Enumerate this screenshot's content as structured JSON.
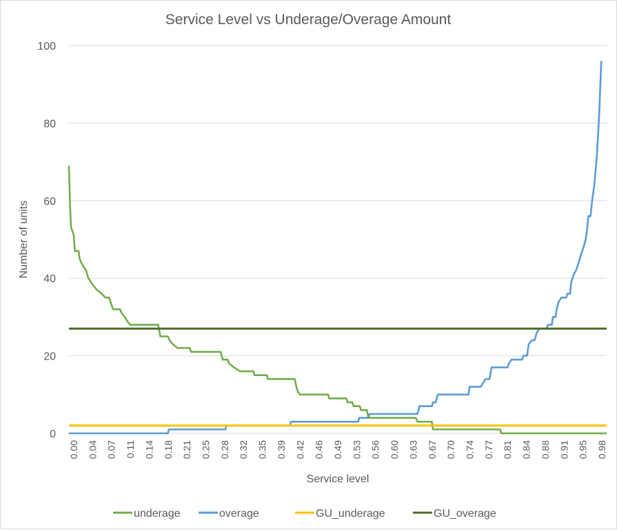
{
  "chart_data": {
    "type": "line",
    "title": "Service Level vs Underage/Overage Amount",
    "xlabel": "Service level",
    "ylabel": "Number of units",
    "xlim": [
      0,
      1.0
    ],
    "ylim": [
      0,
      100
    ],
    "yticks": [
      0,
      20,
      40,
      60,
      80,
      100
    ],
    "xtick_labels": [
      "0.00",
      "0.04",
      "0.07",
      "0.11",
      "0.14",
      "0.18",
      "0.21",
      "0.25",
      "0.28",
      "0.32",
      "0.35",
      "0.39",
      "0.42",
      "0.46",
      "0.49",
      "0.53",
      "0.56",
      "0.60",
      "0.63",
      "0.67",
      "0.70",
      "0.74",
      "0.77",
      "0.81",
      "0.84",
      "0.88",
      "0.91",
      "0.95",
      "0.98"
    ],
    "grid": true,
    "legend": "bottom",
    "series": [
      {
        "name": "underage",
        "color": "#70ad47",
        "step": true,
        "points": [
          [
            0.0,
            69
          ],
          [
            0.002,
            59
          ],
          [
            0.004,
            53
          ],
          [
            0.007,
            52
          ],
          [
            0.009,
            51
          ],
          [
            0.011,
            47
          ],
          [
            0.018,
            47
          ],
          [
            0.02,
            45
          ],
          [
            0.023,
            44
          ],
          [
            0.027,
            43
          ],
          [
            0.032,
            42
          ],
          [
            0.036,
            40
          ],
          [
            0.041,
            39
          ],
          [
            0.046,
            38
          ],
          [
            0.052,
            37
          ],
          [
            0.061,
            36
          ],
          [
            0.068,
            35
          ],
          [
            0.075,
            35
          ],
          [
            0.077,
            34
          ],
          [
            0.082,
            32
          ],
          [
            0.095,
            32
          ],
          [
            0.098,
            31
          ],
          [
            0.104,
            30
          ],
          [
            0.108,
            29
          ],
          [
            0.114,
            28
          ],
          [
            0.166,
            28
          ],
          [
            0.17,
            25
          ],
          [
            0.184,
            25
          ],
          [
            0.187,
            24
          ],
          [
            0.193,
            23
          ],
          [
            0.202,
            22
          ],
          [
            0.225,
            22
          ],
          [
            0.227,
            21
          ],
          [
            0.282,
            21
          ],
          [
            0.286,
            19
          ],
          [
            0.295,
            19
          ],
          [
            0.298,
            18
          ],
          [
            0.307,
            17
          ],
          [
            0.318,
            16
          ],
          [
            0.343,
            16
          ],
          [
            0.345,
            15
          ],
          [
            0.368,
            15
          ],
          [
            0.37,
            14
          ],
          [
            0.42,
            14
          ],
          [
            0.423,
            12
          ],
          [
            0.425,
            11
          ],
          [
            0.429,
            10
          ],
          [
            0.482,
            10
          ],
          [
            0.484,
            9
          ],
          [
            0.516,
            9
          ],
          [
            0.518,
            8
          ],
          [
            0.527,
            8
          ],
          [
            0.529,
            7
          ],
          [
            0.541,
            7
          ],
          [
            0.543,
            6
          ],
          [
            0.554,
            6
          ],
          [
            0.557,
            4
          ],
          [
            0.645,
            4
          ],
          [
            0.648,
            3
          ],
          [
            0.675,
            3
          ],
          [
            0.677,
            1
          ],
          [
            0.802,
            1
          ],
          [
            0.804,
            0
          ],
          [
            1.0,
            0
          ]
        ]
      },
      {
        "name": "overage",
        "color": "#5b9bd5",
        "step": true,
        "points": [
          [
            0.0,
            0
          ],
          [
            0.184,
            0
          ],
          [
            0.186,
            1
          ],
          [
            0.291,
            1
          ],
          [
            0.293,
            2
          ],
          [
            0.411,
            2
          ],
          [
            0.413,
            3
          ],
          [
            0.538,
            3
          ],
          [
            0.54,
            4
          ],
          [
            0.557,
            4
          ],
          [
            0.559,
            5
          ],
          [
            0.648,
            5
          ],
          [
            0.652,
            7
          ],
          [
            0.675,
            7
          ],
          [
            0.677,
            8
          ],
          [
            0.682,
            8
          ],
          [
            0.686,
            10
          ],
          [
            0.743,
            10
          ],
          [
            0.745,
            12
          ],
          [
            0.766,
            12
          ],
          [
            0.77,
            13
          ],
          [
            0.775,
            14
          ],
          [
            0.782,
            14
          ],
          [
            0.786,
            17
          ],
          [
            0.816,
            17
          ],
          [
            0.818,
            18
          ],
          [
            0.823,
            19
          ],
          [
            0.843,
            19
          ],
          [
            0.845,
            20
          ],
          [
            0.852,
            20
          ],
          [
            0.855,
            23
          ],
          [
            0.861,
            24
          ],
          [
            0.866,
            24
          ],
          [
            0.87,
            26
          ],
          [
            0.875,
            27
          ],
          [
            0.888,
            27
          ],
          [
            0.891,
            28
          ],
          [
            0.898,
            28
          ],
          [
            0.9,
            30
          ],
          [
            0.905,
            30
          ],
          [
            0.907,
            32
          ],
          [
            0.911,
            34
          ],
          [
            0.916,
            35
          ],
          [
            0.925,
            35
          ],
          [
            0.927,
            36
          ],
          [
            0.932,
            36
          ],
          [
            0.934,
            39
          ],
          [
            0.939,
            41
          ],
          [
            0.943,
            42
          ],
          [
            0.948,
            44
          ],
          [
            0.952,
            46
          ],
          [
            0.957,
            48
          ],
          [
            0.961,
            50
          ],
          [
            0.964,
            53
          ],
          [
            0.966,
            56
          ],
          [
            0.97,
            56
          ],
          [
            0.973,
            60
          ],
          [
            0.977,
            64
          ],
          [
            0.982,
            72
          ],
          [
            0.986,
            82
          ],
          [
            0.99,
            96
          ]
        ]
      },
      {
        "name": "GU_underage",
        "color": "#ffc000",
        "step": false,
        "points": [
          [
            0.0,
            2
          ],
          [
            1.0,
            2
          ]
        ]
      },
      {
        "name": "GU_overage",
        "color": "#4b6e2c",
        "step": false,
        "points": [
          [
            0.0,
            27
          ],
          [
            1.0,
            27
          ]
        ]
      }
    ]
  }
}
